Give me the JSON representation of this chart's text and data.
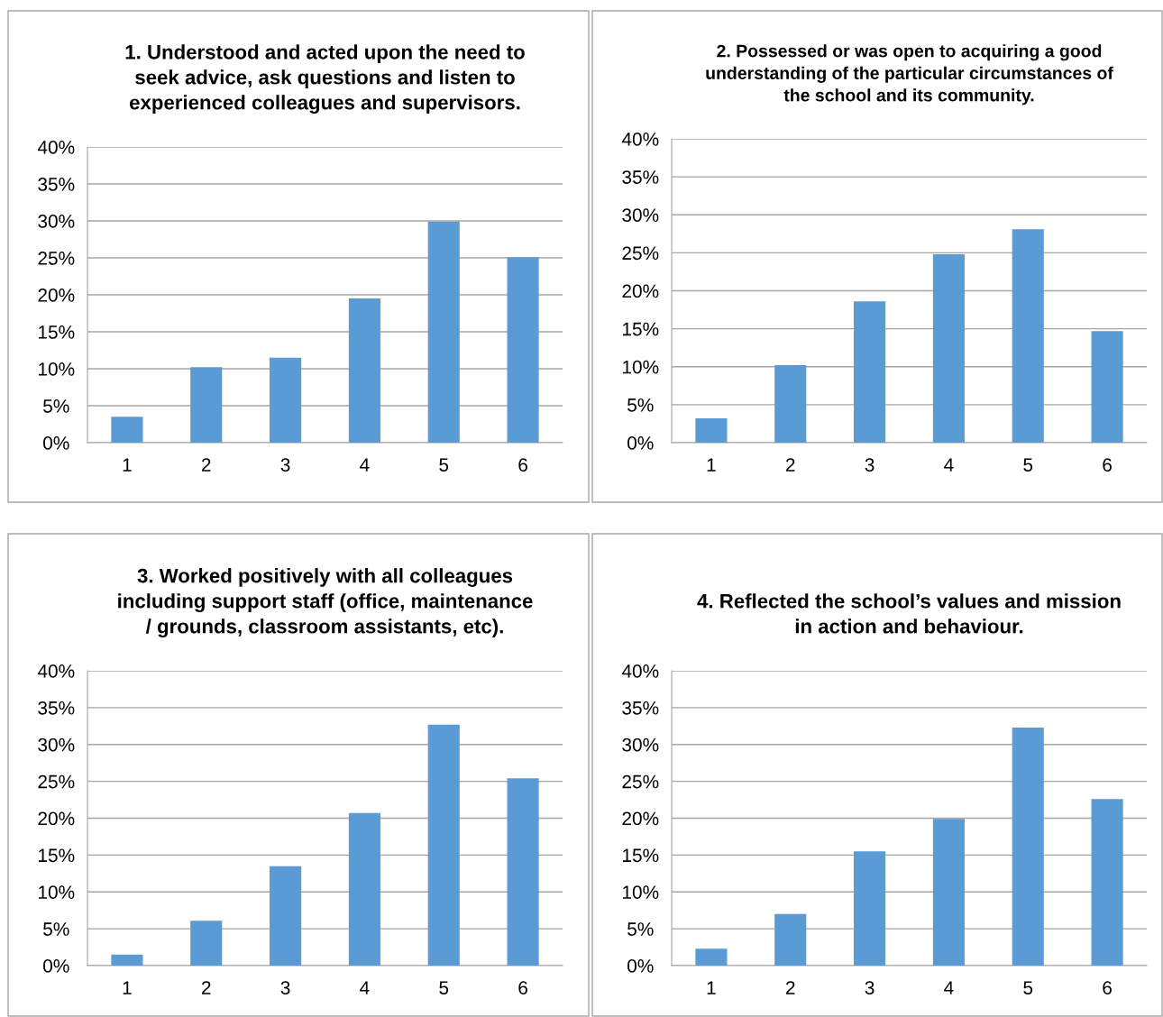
{
  "chart_data": [
    {
      "type": "bar",
      "title": "1. Understood and acted upon the need to\nseek advice, ask questions and listen to\nexperienced colleagues and supervisors.",
      "categories": [
        "1",
        "2",
        "3",
        "4",
        "5",
        "6"
      ],
      "values": [
        3.5,
        10.2,
        11.5,
        19.5,
        29.9,
        25.1
      ],
      "color": "#5b9bd5",
      "ylim": [
        0,
        40
      ],
      "yticks": [
        {
          "value": 0,
          "label": "0%"
        },
        {
          "value": 5,
          "label": "5%"
        },
        {
          "value": 10,
          "label": "10%"
        },
        {
          "value": 15,
          "label": "15%"
        },
        {
          "value": 20,
          "label": "20%"
        },
        {
          "value": 25,
          "label": "25%"
        },
        {
          "value": 30,
          "label": "30%"
        },
        {
          "value": 35,
          "label": "35%"
        },
        {
          "value": 40,
          "label": "40%"
        }
      ],
      "grid": "y",
      "legend": false
    },
    {
      "type": "bar",
      "title": "2. Possessed or was open to acquiring a good\nunderstanding of the particular circumstances of\nthe school and its community.",
      "categories": [
        "1",
        "2",
        "3",
        "4",
        "5",
        "6"
      ],
      "values": [
        3.2,
        10.2,
        18.6,
        24.8,
        28.1,
        14.7
      ],
      "color": "#5b9bd5",
      "ylim": [
        0,
        40
      ],
      "yticks": [
        {
          "value": 0,
          "label": "0%"
        },
        {
          "value": 5,
          "label": "5%"
        },
        {
          "value": 10,
          "label": "10%"
        },
        {
          "value": 15,
          "label": "15%"
        },
        {
          "value": 20,
          "label": "20%"
        },
        {
          "value": 25,
          "label": "25%"
        },
        {
          "value": 30,
          "label": "30%"
        },
        {
          "value": 35,
          "label": "35%"
        },
        {
          "value": 40,
          "label": "40%"
        }
      ],
      "grid": "y",
      "legend": false
    },
    {
      "type": "bar",
      "title": "3. Worked positively with all colleagues\nincluding support staff (office, maintenance\n/ grounds, classroom assistants, etc).",
      "categories": [
        "1",
        "2",
        "3",
        "4",
        "5",
        "6"
      ],
      "values": [
        1.5,
        6.1,
        13.5,
        20.7,
        32.7,
        25.4
      ],
      "color": "#5b9bd5",
      "ylim": [
        0,
        40
      ],
      "yticks": [
        {
          "value": 0,
          "label": "0%"
        },
        {
          "value": 5,
          "label": "5%"
        },
        {
          "value": 10,
          "label": "10%"
        },
        {
          "value": 15,
          "label": "15%"
        },
        {
          "value": 20,
          "label": "20%"
        },
        {
          "value": 25,
          "label": "25%"
        },
        {
          "value": 30,
          "label": "30%"
        },
        {
          "value": 35,
          "label": "35%"
        },
        {
          "value": 40,
          "label": "40%"
        }
      ],
      "grid": "y",
      "legend": false
    },
    {
      "type": "bar",
      "title": "4. Reflected the school’s values and mission\nin action and behaviour.",
      "categories": [
        "1",
        "2",
        "3",
        "4",
        "5",
        "6"
      ],
      "values": [
        2.3,
        7.0,
        15.5,
        19.9,
        32.3,
        22.6
      ],
      "color": "#5b9bd5",
      "ylim": [
        0,
        40
      ],
      "yticks": [
        {
          "value": 0,
          "label": "0%"
        },
        {
          "value": 5,
          "label": "5%"
        },
        {
          "value": 10,
          "label": "10%"
        },
        {
          "value": 15,
          "label": "15%"
        },
        {
          "value": 20,
          "label": "20%"
        },
        {
          "value": 25,
          "label": "25%"
        },
        {
          "value": 30,
          "label": "30%"
        },
        {
          "value": 35,
          "label": "35%"
        },
        {
          "value": 40,
          "label": "40%"
        }
      ],
      "grid": "y",
      "legend": false
    }
  ]
}
